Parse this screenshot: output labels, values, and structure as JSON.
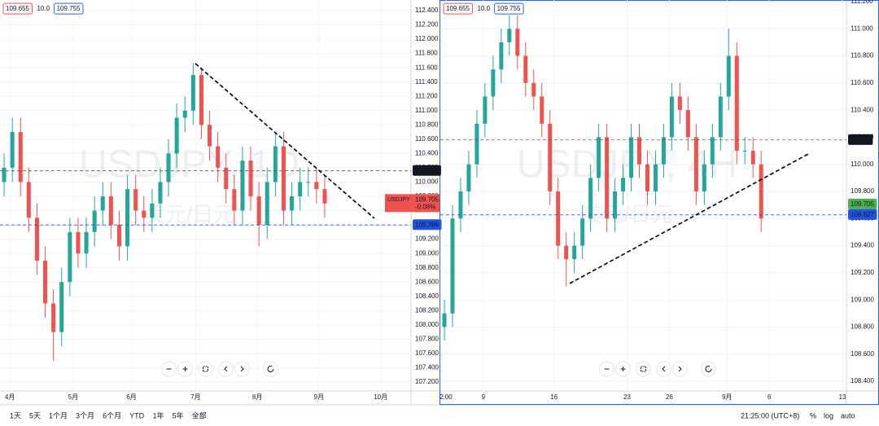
{
  "chart_data": [
    {
      "type": "candlestick",
      "title": "USDJPY, 1D",
      "subtitle": "美元/日元",
      "header": {
        "bid": 109.655,
        "spread": {
          "value": 10,
          "label": "10.0"
        },
        "ask": 109.755
      },
      "xlim": [
        -0.5,
        49.5
      ],
      "xticks": [
        {
          "value": 0.7,
          "label": "4月"
        },
        {
          "value": 8.4,
          "label": "5月"
        },
        {
          "value": 15.5,
          "label": "6月"
        },
        {
          "value": 23.3,
          "label": "7月"
        },
        {
          "value": 30.8,
          "label": "8月"
        },
        {
          "value": 38.3,
          "label": "9月"
        },
        {
          "value": 45.8,
          "label": "10月"
        }
      ],
      "ylim": [
        107.075,
        112.548
      ],
      "yticks": [
        {
          "value": 107.2,
          "label": "107.200"
        },
        {
          "value": 107.4,
          "label": "107.400"
        },
        {
          "value": 107.6,
          "label": "107.600"
        },
        {
          "value": 107.8,
          "label": "107.800"
        },
        {
          "value": 108.0,
          "label": "108.000"
        },
        {
          "value": 108.2,
          "label": "108.200"
        },
        {
          "value": 108.4,
          "label": "108.400"
        },
        {
          "value": 108.6,
          "label": "108.600"
        },
        {
          "value": 108.8,
          "label": "108.800"
        },
        {
          "value": 109.0,
          "label": "109.000"
        },
        {
          "value": 109.2,
          "label": "109.200"
        },
        {
          "value": 109.4,
          "label": "109.400"
        },
        {
          "value": 109.6,
          "label": "109.600"
        },
        {
          "value": 109.8,
          "label": "109.800"
        },
        {
          "value": 110.0,
          "label": "110.000"
        },
        {
          "value": 110.2,
          "label": "110.200"
        },
        {
          "value": 110.4,
          "label": "110.400"
        },
        {
          "value": 110.6,
          "label": "110.600"
        },
        {
          "value": 110.8,
          "label": "110.800"
        },
        {
          "value": 111.0,
          "label": "111.000"
        },
        {
          "value": 111.2,
          "label": "111.200"
        },
        {
          "value": 111.4,
          "label": "111.400"
        },
        {
          "value": 111.6,
          "label": "111.600"
        },
        {
          "value": 111.8,
          "label": "111.800"
        },
        {
          "value": 112.0,
          "label": "112.000"
        },
        {
          "value": 112.2,
          "label": "112.200"
        },
        {
          "value": 112.4,
          "label": "112.400"
        }
      ],
      "grid": true,
      "up_color": "#26a69a",
      "down_color": "#ef5350",
      "open": [
        110.0,
        110.2,
        110.7,
        110.0,
        109.5,
        108.9,
        108.3,
        107.9,
        108.6,
        109.3,
        109.0,
        109.3,
        109.6,
        109.8,
        109.4,
        109.1,
        109.9,
        109.6,
        109.5,
        109.7,
        110.0,
        110.4,
        110.9,
        111.0,
        111.5,
        110.8,
        110.5,
        110.2,
        109.9,
        109.6,
        110.3,
        109.8,
        109.4,
        110.0,
        110.5,
        109.6,
        109.8,
        110.0,
        110.0,
        109.9
      ],
      "high": [
        110.4,
        110.9,
        110.9,
        110.2,
        109.7,
        109.1,
        108.5,
        108.8,
        109.5,
        109.5,
        109.5,
        109.8,
        110.0,
        110.0,
        109.6,
        110.1,
        110.1,
        109.8,
        109.9,
        110.2,
        110.6,
        111.1,
        111.2,
        111.66,
        111.6,
        111.0,
        110.7,
        110.4,
        110.1,
        110.5,
        110.5,
        110.0,
        110.2,
        110.7,
        110.7,
        110.0,
        110.2,
        110.2,
        110.2,
        110.1
      ],
      "low": [
        109.8,
        110.0,
        109.8,
        109.3,
        108.7,
        108.1,
        107.5,
        107.7,
        108.4,
        108.8,
        108.8,
        109.1,
        109.4,
        109.2,
        108.9,
        108.9,
        109.4,
        109.3,
        109.3,
        109.5,
        109.8,
        110.2,
        110.7,
        110.8,
        110.6,
        110.3,
        110.0,
        109.7,
        109.4,
        109.4,
        109.6,
        109.1,
        109.2,
        109.8,
        109.4,
        109.4,
        109.6,
        109.8,
        109.7,
        109.5
      ],
      "close": [
        110.2,
        110.7,
        110.0,
        109.5,
        108.9,
        108.3,
        107.9,
        108.6,
        109.3,
        109.0,
        109.3,
        109.6,
        109.8,
        109.4,
        109.1,
        109.9,
        109.6,
        109.5,
        109.7,
        110.0,
        110.4,
        110.9,
        111.0,
        111.5,
        110.8,
        110.5,
        110.2,
        109.9,
        109.6,
        110.3,
        109.8,
        109.4,
        110.0,
        110.5,
        109.6,
        109.8,
        110.0,
        110.0,
        109.9,
        109.7
      ],
      "price_lines": [
        {
          "value": 110.157,
          "color": "#131722"
        },
        {
          "value": 109.399,
          "color": "#1e53e5"
        }
      ],
      "last": {
        "symbol": "USDJPY",
        "value": 109.705,
        "change": "-0.08%",
        "color": "#ef5350"
      }
    },
    {
      "type": "candlestick",
      "title": "USDJPY, 4H",
      "subtitle": "美元/日元",
      "header": {
        "bid": 109.655,
        "spread": {
          "value": 10,
          "label": "10.0"
        },
        "ask": 109.755
      },
      "xlim": [
        -0.5,
        49.5
      ],
      "xticks": [
        {
          "value": 0.2,
          "label": "2:00"
        },
        {
          "value": 4.8,
          "label": "9"
        },
        {
          "value": 13.5,
          "label": "16"
        },
        {
          "value": 22.5,
          "label": "23"
        },
        {
          "value": 27.7,
          "label": "26"
        },
        {
          "value": 34.8,
          "label": "9月"
        },
        {
          "value": 40,
          "label": "6"
        },
        {
          "value": 49,
          "label": "13"
        }
      ],
      "ylim": [
        108.328,
        111.212
      ],
      "yticks": [
        {
          "value": 108.4,
          "label": "108.400"
        },
        {
          "value": 108.6,
          "label": "108.600"
        },
        {
          "value": 108.8,
          "label": "108.800"
        },
        {
          "value": 109.0,
          "label": "109.000"
        },
        {
          "value": 109.2,
          "label": "109.200"
        },
        {
          "value": 109.4,
          "label": "109.400"
        },
        {
          "value": 109.6,
          "label": "109.600"
        },
        {
          "value": 109.8,
          "label": "109.800"
        },
        {
          "value": 110.0,
          "label": "110.000"
        },
        {
          "value": 110.2,
          "label": "110.200"
        },
        {
          "value": 110.4,
          "label": "110.400"
        },
        {
          "value": 110.6,
          "label": "110.600"
        },
        {
          "value": 110.8,
          "label": "110.800"
        },
        {
          "value": 111.0,
          "label": "111.000"
        },
        {
          "value": 111.2,
          "label": "111.200"
        }
      ],
      "grid": true,
      "up_color": "#26a69a",
      "down_color": "#ef5350",
      "open": [
        108.8,
        108.9,
        109.6,
        109.8,
        110.0,
        110.3,
        110.5,
        110.7,
        110.9,
        111.0,
        110.8,
        110.6,
        110.5,
        110.3,
        109.8,
        109.4,
        109.3,
        109.4,
        109.6,
        109.9,
        110.2,
        109.6,
        109.8,
        109.9,
        110.2,
        110.0,
        109.8,
        110.0,
        110.2,
        110.5,
        110.4,
        110.2,
        109.8,
        110.0,
        110.2,
        110.5,
        110.8,
        110.1,
        110.1,
        110.0
      ],
      "high": [
        109.0,
        109.7,
        109.9,
        110.1,
        110.4,
        110.6,
        110.8,
        111.0,
        111.1,
        111.1,
        110.9,
        110.7,
        110.6,
        110.4,
        109.9,
        109.5,
        109.5,
        109.7,
        110.0,
        110.3,
        110.3,
        109.9,
        110.0,
        110.3,
        110.3,
        110.1,
        110.1,
        110.3,
        110.6,
        110.6,
        110.5,
        110.3,
        110.1,
        110.3,
        110.6,
        111.0,
        110.9,
        110.2,
        110.2,
        110.1
      ],
      "low": [
        108.7,
        108.8,
        109.5,
        109.7,
        109.9,
        110.2,
        110.4,
        110.6,
        110.8,
        110.7,
        110.5,
        110.4,
        110.2,
        109.7,
        109.3,
        109.1,
        109.2,
        109.3,
        109.5,
        109.8,
        109.5,
        109.5,
        109.7,
        109.8,
        109.9,
        109.7,
        109.7,
        109.9,
        110.1,
        110.3,
        110.1,
        109.7,
        109.7,
        109.9,
        110.1,
        110.4,
        110.0,
        110.0,
        109.9,
        109.5
      ],
      "close": [
        108.9,
        109.6,
        109.8,
        110.0,
        110.3,
        110.5,
        110.7,
        110.9,
        111.0,
        110.8,
        110.6,
        110.5,
        110.3,
        109.8,
        109.4,
        109.3,
        109.4,
        109.6,
        109.9,
        110.2,
        109.6,
        109.8,
        109.9,
        110.2,
        110.0,
        109.8,
        110.0,
        110.2,
        110.5,
        110.4,
        110.2,
        109.8,
        110.0,
        110.2,
        110.5,
        110.8,
        110.1,
        110.1,
        110.0,
        109.6
      ],
      "price_lines": [
        {
          "value": 110.18,
          "color": "#131722"
        },
        {
          "value": 109.705,
          "color": "#4caf50"
        },
        {
          "value": 109.627,
          "color": "#1e53e5"
        }
      ]
    }
  ],
  "toolbar": {
    "ranges": [
      "1天",
      "5天",
      "1个月",
      "3个月",
      "6个月",
      "YTD",
      "1年",
      "5年",
      "全部"
    ],
    "time": "21:25:00 (UTC+8)",
    "options": [
      "%",
      "log",
      "auto"
    ]
  }
}
